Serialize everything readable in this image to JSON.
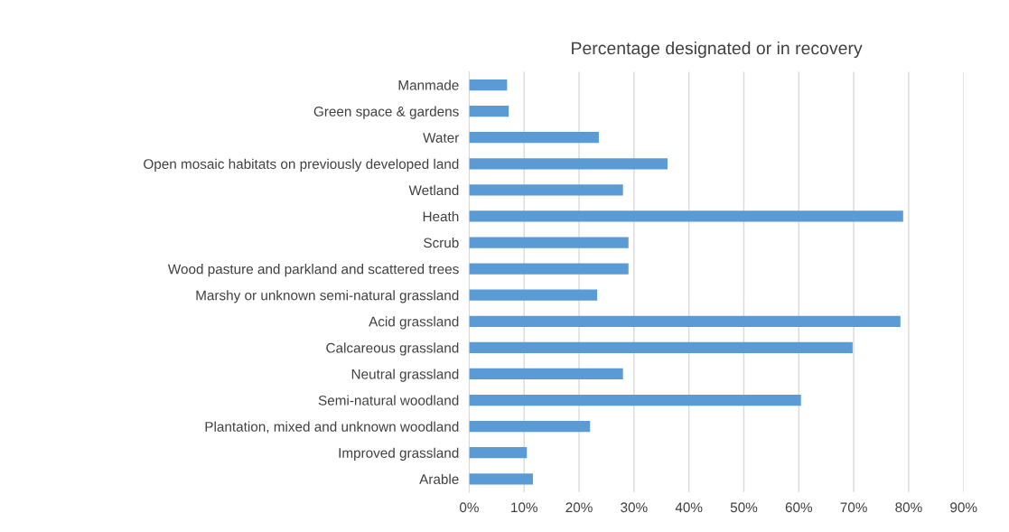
{
  "chart_data": {
    "type": "bar",
    "orientation": "horizontal",
    "title": "Percentage designated or in recovery",
    "categories": [
      "Manmade",
      "Green space & gardens",
      "Water",
      "Open mosaic habitats on previously developed land",
      "Wetland",
      "Heath",
      "Scrub",
      "Wood pasture and parkland and scattered trees",
      "Marshy or unknown semi-natural grassland",
      "Acid grassland",
      "Calcareous grassland",
      "Neutral grassland",
      "Semi-natural woodland",
      "Plantation, mixed and unknown woodland",
      "Improved grassland",
      "Arable"
    ],
    "values": [
      6.9,
      7.2,
      23.6,
      36.1,
      28.0,
      79.0,
      29.0,
      29.0,
      23.3,
      78.5,
      69.8,
      28.0,
      60.4,
      22.0,
      10.5,
      11.6
    ],
    "color": "#5b9bd5",
    "xlim": [
      0,
      90
    ],
    "xticks": [
      {
        "value": 0,
        "label": "0%"
      },
      {
        "value": 10,
        "label": "10%"
      },
      {
        "value": 20,
        "label": "20%"
      },
      {
        "value": 30,
        "label": "30%"
      },
      {
        "value": 40,
        "label": "40%"
      },
      {
        "value": 50,
        "label": "50%"
      },
      {
        "value": 60,
        "label": "60%"
      },
      {
        "value": 70,
        "label": "70%"
      },
      {
        "value": 80,
        "label": "80%"
      },
      {
        "value": 90,
        "label": "90%"
      }
    ],
    "grid": "x"
  }
}
